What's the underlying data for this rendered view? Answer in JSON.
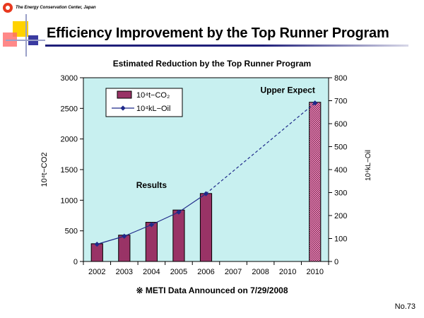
{
  "header": {
    "organization": "The Energy Conservation Center, Japan",
    "title": "Efficiency Improvement by the Top Runner Program",
    "page_number": "No.73"
  },
  "footnote": "※ METI Data Announced on 7/29/2008",
  "colors": {
    "plot_background": "#c8f0f0",
    "bar_fill": "#993366",
    "expected_bar_fill": "#ff99cc",
    "line_color": "#1f2a8a",
    "title_rule": "#1f1f7a"
  },
  "chart_data": {
    "type": "bar",
    "title": "Estimated Reduction by the Top Runner Program",
    "categories": [
      "2002",
      "2003",
      "2004",
      "2005",
      "2006",
      "2007",
      "2008",
      "2010",
      "2010"
    ],
    "ylabel": "10⁴t−CO2",
    "y2label": "10⁴kL−Oil",
    "ylim": [
      0,
      3000
    ],
    "y2lim": [
      0,
      800
    ],
    "yticks": [
      0,
      500,
      1000,
      1500,
      2000,
      2500,
      3000
    ],
    "y2ticks": [
      0,
      100,
      200,
      300,
      400,
      500,
      600,
      700,
      800
    ],
    "grid": false,
    "legend_position": "top-left",
    "series": [
      {
        "name": "10⁴t−CO₂",
        "kind": "bar",
        "axis": "left",
        "values": [
          290,
          430,
          640,
          840,
          1110,
          null,
          null,
          null,
          2600
        ]
      },
      {
        "name": "10⁴kL−Oil",
        "kind": "line",
        "axis": "right",
        "values": [
          75,
          110,
          160,
          215,
          295,
          null,
          null,
          null,
          690
        ]
      }
    ],
    "annotations": [
      {
        "text": "Results",
        "category_index": 2,
        "value": 1200
      },
      {
        "text": "Upper Expect",
        "category_index": 7,
        "value": 2750
      }
    ]
  }
}
